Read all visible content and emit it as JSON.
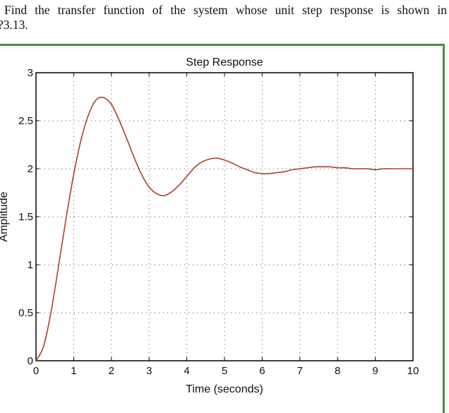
{
  "question": {
    "line1": "Find the transfer function of the system whose unit step response is shown in",
    "line2": "?3.13."
  },
  "colors": {
    "frame_border": "#4a8f34",
    "curve": "#a8432a",
    "axis": "#000000",
    "grid": "#555555"
  },
  "chart_data": {
    "type": "line",
    "title": "Step Response",
    "xlabel": "Time (seconds)",
    "ylabel": "Amplitude",
    "xlim": [
      0,
      10
    ],
    "ylim": [
      0,
      3
    ],
    "xticks": [
      0,
      1,
      2,
      3,
      4,
      5,
      6,
      7,
      8,
      9,
      10
    ],
    "yticks": [
      0,
      0.5,
      1,
      1.5,
      2,
      2.5,
      3
    ],
    "xtick_labels": [
      "0",
      "1",
      "2",
      "3",
      "4",
      "5",
      "6",
      "7",
      "8",
      "9",
      "10"
    ],
    "ytick_labels": [
      "0",
      "0.5",
      "1",
      "1.5",
      "2",
      "2.5",
      "3"
    ],
    "grid": true,
    "grid_style": "dotted",
    "legend": null,
    "series": [
      {
        "name": "Step Response",
        "x": [
          0,
          0.2,
          0.4,
          0.6,
          0.8,
          1.0,
          1.2,
          1.4,
          1.6,
          1.8,
          2.0,
          2.2,
          2.4,
          2.6,
          2.8,
          3.0,
          3.2,
          3.4,
          3.6,
          3.8,
          4.0,
          4.2,
          4.4,
          4.6,
          4.8,
          5.0,
          5.2,
          5.4,
          5.6,
          5.8,
          6.0,
          6.2,
          6.4,
          6.6,
          6.8,
          7.0,
          7.2,
          7.4,
          7.6,
          7.8,
          8.0,
          8.2,
          8.4,
          8.6,
          8.8,
          9.0,
          9.2,
          9.4,
          9.6,
          9.8,
          10.0
        ],
        "y": [
          0,
          0.15,
          0.51,
          0.99,
          1.49,
          1.94,
          2.31,
          2.57,
          2.72,
          2.74,
          2.67,
          2.51,
          2.32,
          2.12,
          1.94,
          1.81,
          1.74,
          1.72,
          1.76,
          1.83,
          1.92,
          2.01,
          2.07,
          2.1,
          2.11,
          2.09,
          2.06,
          2.02,
          1.99,
          1.96,
          1.95,
          1.95,
          1.96,
          1.97,
          1.99,
          2.0,
          2.01,
          2.02,
          2.02,
          2.02,
          2.01,
          2.01,
          2.0,
          2.0,
          2.0,
          1.99,
          2.0,
          2.0,
          2.0,
          2.0,
          2.0
        ]
      }
    ],
    "annotations": {
      "peak": {
        "t": 1.63,
        "value": 2.74
      },
      "first_undershoot": {
        "t": 3.3,
        "value": 1.72
      },
      "second_peak": {
        "t": 4.9,
        "value": 2.1
      },
      "final_value": 2.0
    }
  }
}
